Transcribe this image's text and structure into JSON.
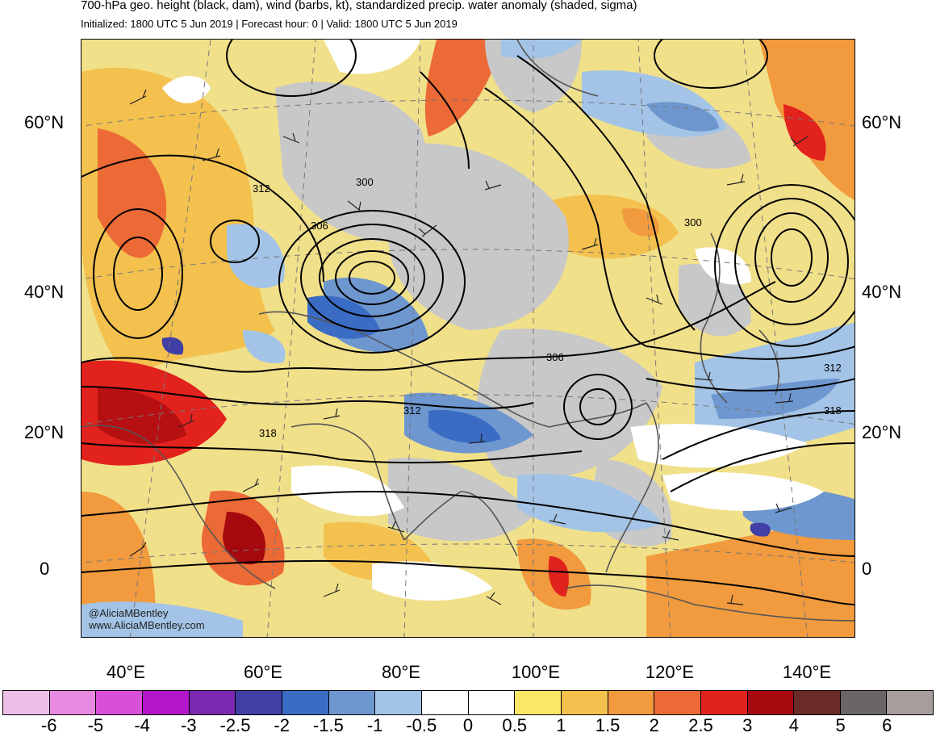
{
  "header": {
    "title": "700-hPa geo. height (black, dam), wind (barbs, kt), standardized precip. water anomaly (shaded, sigma)",
    "subtitle": "Initialized: 1800 UTC 5 Jun 2019 | Forecast hour: 0 | Valid: 1800 UTC 5 Jun 2019"
  },
  "map": {
    "lat_labels": [
      "60°N",
      "40°N",
      "20°N",
      "0"
    ],
    "lon_labels": [
      "40°E",
      "60°E",
      "80°E",
      "100°E",
      "120°E",
      "140°E"
    ],
    "contour_labels": [
      "312",
      "306",
      "300",
      "300",
      "306",
      "312",
      "318",
      "318",
      "312"
    ],
    "watermark": {
      "handle": "@AliciaMBentley",
      "site": "www.AliciaMBentley.com"
    }
  },
  "colorbar": {
    "colors": [
      "#ebbfe8",
      "#e88ae2",
      "#d94fd9",
      "#b316c8",
      "#7c28b0",
      "#3f3fa6",
      "#3b6cc4",
      "#6e97d0",
      "#a3c4e6",
      "#ffffff",
      "#ffffff",
      "#fbe668",
      "#f4c14f",
      "#f19a3e",
      "#ec6a35",
      "#e2221d",
      "#a5090e",
      "#6a2a26",
      "#6b6565",
      "#a79d9d"
    ],
    "labels": [
      "-6",
      "-5",
      "-4",
      "-3",
      "-2.5",
      "-2",
      "-1.5",
      "-1",
      "-0.5",
      "0",
      "0.5",
      "1",
      "1.5",
      "2",
      "2.5",
      "3",
      "4",
      "5",
      "6"
    ]
  }
}
